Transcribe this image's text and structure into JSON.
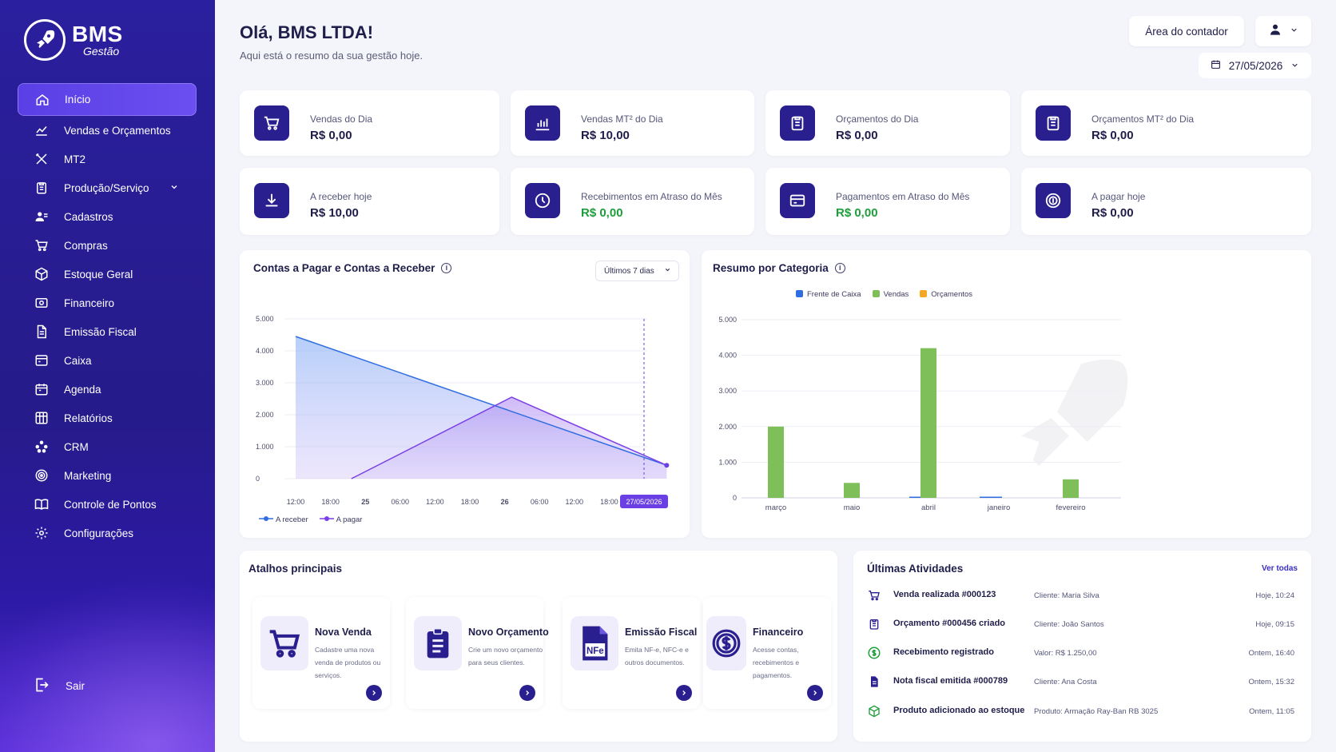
{
  "brand": {
    "name": "BMS",
    "sub": "Gestão"
  },
  "sidebar": {
    "items": [
      {
        "label": "Início",
        "icon": "home-icon"
      },
      {
        "label": "Vendas e Orçamentos",
        "icon": "trend-icon"
      },
      {
        "label": "MT2",
        "icon": "tools-icon"
      },
      {
        "label": "Produção/Serviço",
        "icon": "clipboard-icon"
      },
      {
        "label": "Cadastros",
        "icon": "users-icon"
      },
      {
        "label": "Compras",
        "icon": "cart-icon"
      },
      {
        "label": "Estoque Geral",
        "icon": "box-icon"
      },
      {
        "label": "Financeiro",
        "icon": "money-icon"
      },
      {
        "label": "Emissão Fiscal",
        "icon": "document-icon"
      },
      {
        "label": "Caixa",
        "icon": "register-icon"
      },
      {
        "label": "Agenda",
        "icon": "calendar-icon"
      },
      {
        "label": "Relatórios",
        "icon": "report-icon"
      },
      {
        "label": "CRM",
        "icon": "network-icon"
      },
      {
        "label": "Marketing",
        "icon": "target-icon"
      },
      {
        "label": "Controle de Pontos",
        "icon": "book-icon"
      },
      {
        "label": "Configurações",
        "icon": "gear-icon"
      }
    ],
    "logout": "Sair"
  },
  "header": {
    "greeting": "Olá, BMS LTDA!",
    "subtitle": "Aqui está o resumo da sua gestão hoje.",
    "accountant_button": "Área do contador",
    "date": "27/05/2026"
  },
  "stats": [
    {
      "label": "Vendas do Dia",
      "value": "R$ 0,00",
      "icon": "cart-icon"
    },
    {
      "label": "Vendas MT² do Dia",
      "value": "R$ 10,00",
      "icon": "bar-chart-icon"
    },
    {
      "label": "Orçamentos do Dia",
      "value": "R$ 0,00",
      "icon": "clipboard-icon"
    },
    {
      "label": "Orçamentos MT² do Dia",
      "value": "R$ 0,00",
      "icon": "clipboard-icon"
    },
    {
      "label": "A receber hoje",
      "value": "R$ 10,00",
      "icon": "download-icon"
    },
    {
      "label": "Recebimentos em Atraso do Mês",
      "value": "R$ 0,00",
      "icon": "clock-icon"
    },
    {
      "label": "Pagamentos em Atraso do Mês",
      "value": "R$ 0,00",
      "icon": "card-icon"
    },
    {
      "label": "A pagar hoje",
      "value": "R$ 0,00",
      "icon": "coin-icon"
    }
  ],
  "colors": {
    "primary": "#2a1f8f",
    "green": "#1e9e3a",
    "blue": "#2f6de1",
    "purple": "#7a3fe6",
    "bar_green": "#7fbf5a",
    "orange": "#f5a623"
  },
  "chart_data": [
    {
      "type": "area",
      "title": "Contas a Pagar e Contas a Receber",
      "filter": "Últimos 7 dias",
      "x_ticks": [
        "12:00",
        "18:00",
        "25",
        "06:00",
        "12:00",
        "18:00",
        "26",
        "06:00",
        "12:00",
        "18:00",
        "27/05/2026"
      ],
      "y_ticks": [
        "5.000",
        "4.000",
        "3.000",
        "2.000",
        "1.000",
        "0"
      ],
      "ylim": [
        0,
        5000
      ],
      "series": [
        {
          "name": "A receber",
          "color": "#2f6de1",
          "points": [
            [
              0,
              4450
            ],
            [
              10.65,
              420
            ]
          ]
        },
        {
          "name": "A pagar",
          "color": "#7a3fe6",
          "points": [
            [
              1.6,
              0
            ],
            [
              6.2,
              2550
            ],
            [
              10.65,
              420
            ]
          ]
        }
      ]
    },
    {
      "type": "bar",
      "title": "Resumo por Categoria",
      "categories": [
        "março",
        "maio",
        "abril",
        "janeiro",
        "fevereiro"
      ],
      "y_ticks": [
        "5.000",
        "4.000",
        "3.000",
        "2.000",
        "1.000",
        "0"
      ],
      "ylim": [
        0,
        5000
      ],
      "series": [
        {
          "name": "Frente de Caixa",
          "color": "#2f6de1",
          "values": [
            0,
            0,
            20,
            20,
            0
          ]
        },
        {
          "name": "Vendas",
          "color": "#7fbf5a",
          "values": [
            2000,
            420,
            4200,
            0,
            520
          ]
        },
        {
          "name": "Orçamentos",
          "color": "#f5a623",
          "values": [
            0,
            0,
            0,
            0,
            0
          ]
        }
      ]
    }
  ],
  "shortcuts": {
    "title": "Atalhos principais",
    "items": [
      {
        "title": "Nova Venda",
        "desc": "Cadastre uma nova venda de produtos ou serviços.",
        "icon": "cart-icon"
      },
      {
        "title": "Novo Orçamento",
        "desc": "Crie um novo orçamento para seus clientes.",
        "icon": "clipboard-icon"
      },
      {
        "title": "Emissão Fiscal",
        "desc": "Emita NF-e, NFC-e e outros documentos.",
        "icon": "nfe-icon"
      },
      {
        "title": "Financeiro",
        "desc": "Acesse contas, recebimentos e pagamentos.",
        "icon": "dollar-icon"
      }
    ]
  },
  "activities": {
    "title": "Últimas Atividades",
    "see_all": "Ver todas",
    "items": [
      {
        "title": "Venda realizada #000123",
        "detail": "Cliente: Maria Silva",
        "time": "Hoje, 10:24",
        "icon": "cart-icon",
        "color": "#2a1f8f"
      },
      {
        "title": "Orçamento #000456 criado",
        "detail": "Cliente: João Santos",
        "time": "Hoje, 09:15",
        "icon": "clipboard-icon",
        "color": "#2a1f8f"
      },
      {
        "title": "Recebimento registrado",
        "detail": "Valor: R$ 1.250,00",
        "time": "Ontem, 16:40",
        "icon": "dollar-icon",
        "color": "#1e9e3a"
      },
      {
        "title": "Nota fiscal emitida #000789",
        "detail": "Cliente: Ana Costa",
        "time": "Ontem, 15:32",
        "icon": "document-icon",
        "color": "#2a1f8f"
      },
      {
        "title": "Produto adicionado ao estoque",
        "detail": "Produto: Armação Ray-Ban RB 3025",
        "time": "Ontem, 11:05",
        "icon": "box-icon",
        "color": "#1e9e3a"
      }
    ]
  }
}
